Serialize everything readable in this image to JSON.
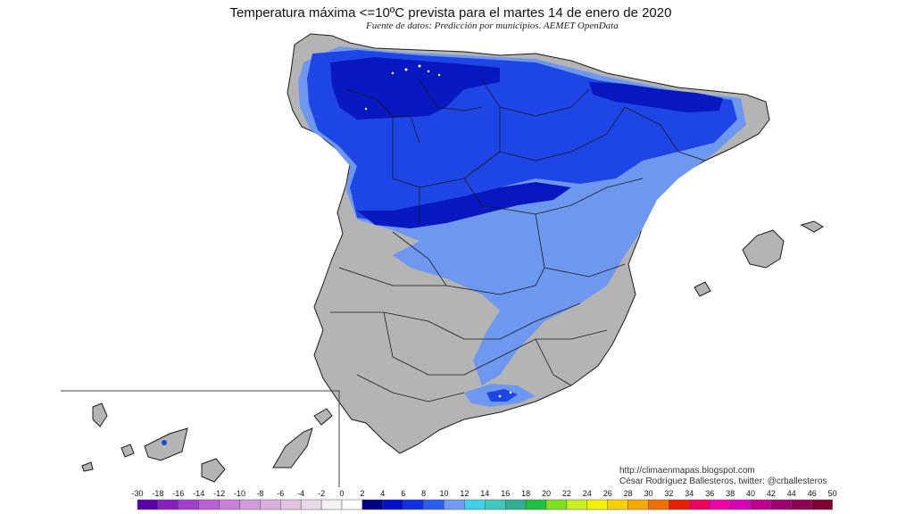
{
  "title": "Temperatura máxima <=10ºC prevista para el martes 14 de enero de 2020",
  "source": "Fuente de datos: Predicción por municipios. AEMET OpenData",
  "credits": {
    "url": "http://climaenmapas.blogspot.com",
    "author": "César Rodríguez Ballesteros, twitter: @crballesteros"
  },
  "legend": {
    "stops": [
      {
        "value": "-30",
        "color": "#5b00a8"
      },
      {
        "value": "-18",
        "color": "#8a1fbf"
      },
      {
        "value": "-16",
        "color": "#a23fcc"
      },
      {
        "value": "-14",
        "color": "#b95fd6"
      },
      {
        "value": "-12",
        "color": "#c77fd9"
      },
      {
        "value": "-10",
        "color": "#d19ad8"
      },
      {
        "value": "-8",
        "color": "#d9b0dc"
      },
      {
        "value": "-6",
        "color": "#e0c4e0"
      },
      {
        "value": "-4",
        "color": "#e8dae8"
      },
      {
        "value": "-2",
        "color": "#f2f2f2"
      },
      {
        "value": "0",
        "color": "#ffffff"
      },
      {
        "value": "2",
        "color": "#000080"
      },
      {
        "value": "4",
        "color": "#0010c8"
      },
      {
        "value": "6",
        "color": "#1030e8"
      },
      {
        "value": "8",
        "color": "#2a5cf0"
      },
      {
        "value": "10",
        "color": "#6e9af2"
      },
      {
        "value": "12",
        "color": "#3fd0e8"
      },
      {
        "value": "14",
        "color": "#40c8b8"
      },
      {
        "value": "16",
        "color": "#30b090"
      },
      {
        "value": "18",
        "color": "#20c040"
      },
      {
        "value": "20",
        "color": "#80e020"
      },
      {
        "value": "22",
        "color": "#c8f020"
      },
      {
        "value": "24",
        "color": "#f0f000"
      },
      {
        "value": "26",
        "color": "#f8d000"
      },
      {
        "value": "28",
        "color": "#f8a800"
      },
      {
        "value": "30",
        "color": "#f07000"
      },
      {
        "value": "32",
        "color": "#e82000"
      },
      {
        "value": "34",
        "color": "#f00060"
      },
      {
        "value": "36",
        "color": "#f000a8"
      },
      {
        "value": "38",
        "color": "#d800b8"
      },
      {
        "value": "40",
        "color": "#c00090"
      },
      {
        "value": "42",
        "color": "#a00070"
      },
      {
        "value": "44",
        "color": "#900050"
      },
      {
        "value": "46",
        "color": "#800030"
      },
      {
        "value": "50",
        "color": "#700020"
      }
    ]
  },
  "colors": {
    "land": "#b4b4b4",
    "cold_dark": "#0818c0",
    "cold_mid": "#1e46e6",
    "cold_light": "#6e98f0",
    "border": "#222222"
  }
}
